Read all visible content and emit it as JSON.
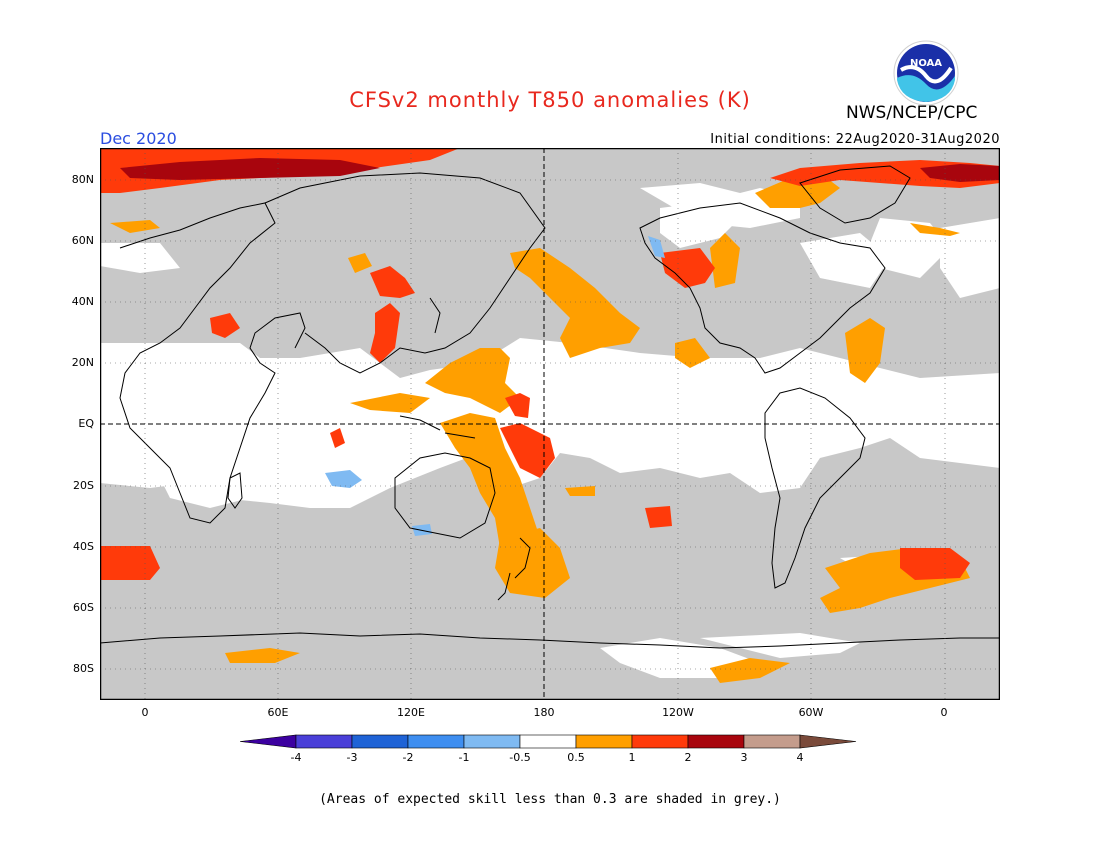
{
  "header": {
    "title": "CFSv2 monthly T850 anomalies (K)",
    "agency": "NWS/NCEP/CPC",
    "logo_text": "NOAA",
    "month": "Dec 2020",
    "initial_conditions": "Initial conditions: 22Aug2020-31Aug2020"
  },
  "axes": {
    "lat_labels": [
      "80N",
      "60N",
      "40N",
      "20N",
      "EQ",
      "20S",
      "40S",
      "60S",
      "80S"
    ],
    "lon_labels": [
      "0",
      "60E",
      "120E",
      "180",
      "120W",
      "60W",
      "0"
    ]
  },
  "legend": {
    "tick_labels": [
      "-4",
      "-3",
      "-2",
      "-1",
      "-0.5",
      "0.5",
      "1",
      "2",
      "3",
      "4"
    ],
    "colors": [
      "#3c00a0",
      "#4a3fd8",
      "#1f63d6",
      "#3e8ef0",
      "#7fbaf2",
      "#ffffff",
      "#ff9f00",
      "#ff3a0a",
      "#a8050d",
      "#c49c8c",
      "#7a4a3a"
    ]
  },
  "colors": {
    "low_skill_grey": "#c8c8c8",
    "title_red": "#e8281e",
    "month_blue": "#2a4de0"
  },
  "footnote": "(Areas of expected skill less than 0.3 are shaded in grey.)"
}
